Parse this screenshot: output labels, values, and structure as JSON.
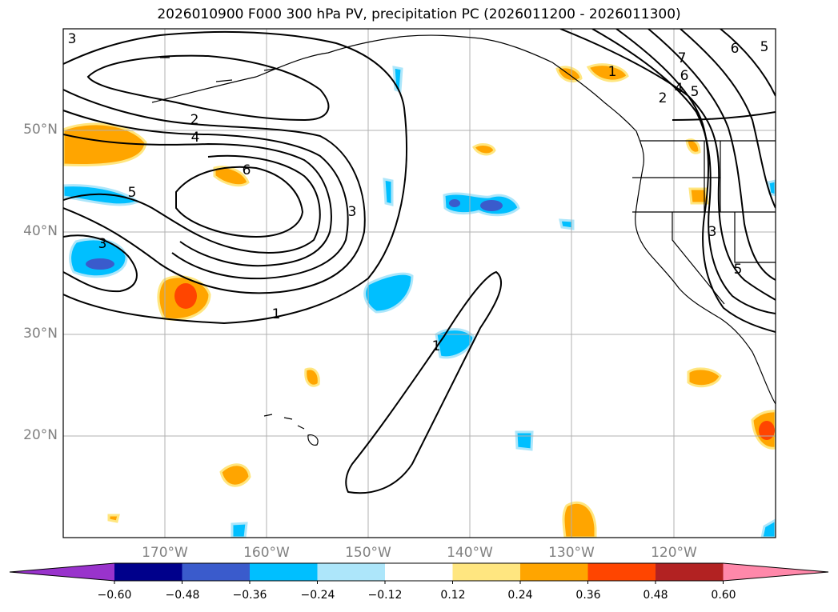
{
  "title": "2026010900 F000 300 hPa PV, precipitation PC (2026011200 - 2026011300)",
  "lon_ticks": [
    "170°W",
    "160°W",
    "150°W",
    "140°W",
    "130°W",
    "120°W"
  ],
  "lat_ticks": [
    "50°N",
    "40°N",
    "30°N",
    "20°N"
  ],
  "contour_labels": [
    "3",
    "2",
    "4",
    "5",
    "6",
    "3",
    "1",
    "1",
    "7",
    "6",
    "5",
    "4",
    "2",
    "6",
    "5",
    "3",
    "5",
    "1",
    "3"
  ],
  "colorbar": {
    "ticks": [
      "−0.60",
      "−0.48",
      "−0.36",
      "−0.24",
      "−0.12",
      "0.12",
      "0.24",
      "0.36",
      "0.48",
      "0.60"
    ],
    "colors": [
      "#9933cc",
      "#00008b",
      "#3a5bcc",
      "#00bfff",
      "#ade6fa",
      "#ffffff",
      "#ffe680",
      "#ffa500",
      "#ff4500",
      "#b22222",
      "#ff88aa"
    ]
  },
  "colors": {
    "axis": "#000000",
    "grid": "#b0b0b0",
    "tick_text": "#808080",
    "contour": "#000000",
    "coast": "#000000"
  }
}
